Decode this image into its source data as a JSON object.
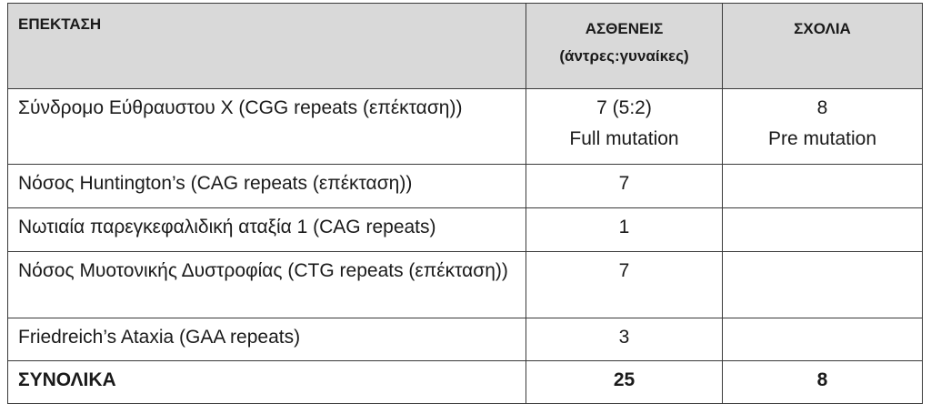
{
  "table": {
    "headers": {
      "col1": "ΕΠΕΚΤΑΣΗ",
      "col2_line1": "ΑΣΘΕΝΕΙΣ",
      "col2_line2": "(άντρες:γυναίκες)",
      "col3": "ΣΧΟΛΙΑ"
    },
    "rows": [
      {
        "name": "Σύνδρομο Εύθραυστου Χ (CGG repeats (επέκταση))",
        "patients_line1": "7 (5:2)",
        "patients_line2": "Full mutation",
        "comments_line1": "8",
        "comments_line2": "Pre mutation"
      },
      {
        "name": "Νόσος Huntington’s (CAG repeats (επέκταση))",
        "patients_line1": "7",
        "comments_line1": ""
      },
      {
        "name": "Νωτιαία παρεγκεφαλιδική αταξία 1 (CAG repeats)",
        "patients_line1": "1",
        "comments_line1": ""
      },
      {
        "name": "Νόσος Μυοτονικής Δυστροφίας (CTG repeats (επέκταση))",
        "patients_line1": "7",
        "comments_line1": ""
      },
      {
        "name": "Friedreich’s Ataxia (GAA repeats)",
        "patients_line1": "3",
        "comments_line1": ""
      }
    ],
    "total": {
      "label": "ΣΥΝΟΛΙΚΑ",
      "patients": "25",
      "comments": "8"
    }
  },
  "colors": {
    "header_background": "#d9d9d9",
    "border": "#3a3a3a",
    "text": "#1a1a1a"
  }
}
